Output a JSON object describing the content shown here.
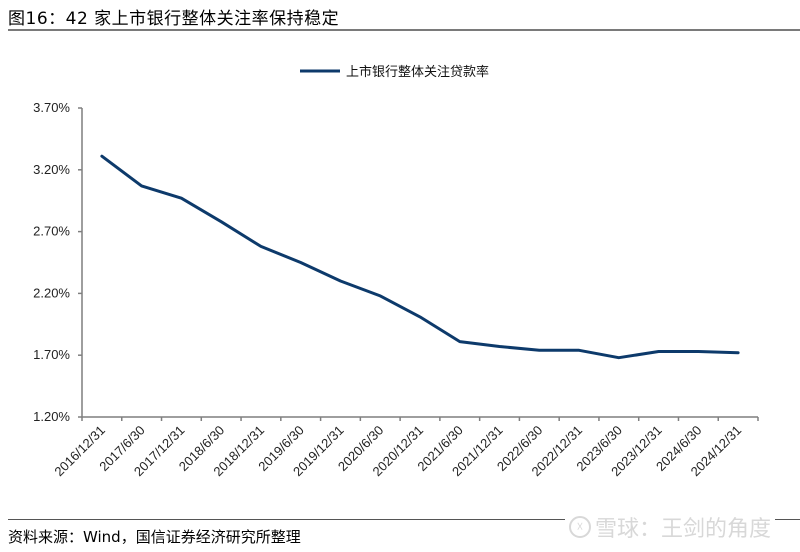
{
  "figure": {
    "title": "图16：42 家上市银行整体关注率保持稳定",
    "source": "资料来源：Wind，国信证券经济研究所整理",
    "watermark": "雪球：王剑的角度",
    "line_color": "#0d3a6b"
  },
  "chart_data": {
    "type": "line",
    "title": "",
    "xlabel": "",
    "ylabel": "",
    "ylim": [
      1.2,
      3.7
    ],
    "yticks": [
      "3.70%",
      "3.20%",
      "2.70%",
      "2.20%",
      "1.70%",
      "1.20%"
    ],
    "ytick_values": [
      3.7,
      3.2,
      2.7,
      2.2,
      1.7,
      1.2
    ],
    "grid": false,
    "legend_position": "top",
    "categories": [
      "2016/12/31",
      "2017/6/30",
      "2017/12/31",
      "2018/6/30",
      "2018/12/31",
      "2019/6/30",
      "2019/12/31",
      "2020/6/30",
      "2020/12/31",
      "2021/6/30",
      "2021/12/31",
      "2022/6/30",
      "2022/12/31",
      "2023/6/30",
      "2023/12/31",
      "2024/6/30",
      "2024/12/31"
    ],
    "series": [
      {
        "name": "上市银行整体关注贷款率",
        "values": [
          3.31,
          3.07,
          2.97,
          2.78,
          2.58,
          2.45,
          2.3,
          2.18,
          2.01,
          1.81,
          1.77,
          1.74,
          1.74,
          1.68,
          1.73,
          1.73,
          1.72
        ]
      }
    ]
  }
}
